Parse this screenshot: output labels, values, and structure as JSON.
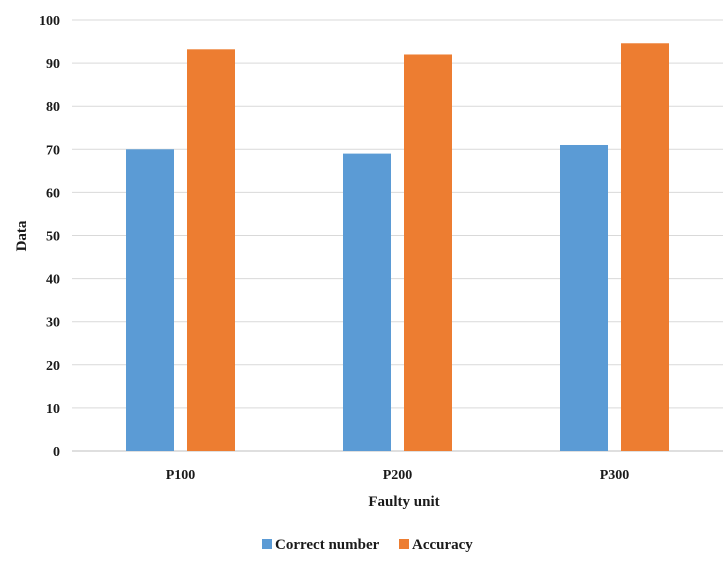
{
  "chart_data": {
    "type": "bar",
    "categories": [
      "P100",
      "P200",
      "P300"
    ],
    "series": [
      {
        "name": "Correct number",
        "values": [
          70,
          69,
          71
        ]
      },
      {
        "name": "Accuracy",
        "values": [
          93.2,
          92,
          94.6
        ]
      }
    ],
    "xlabel": "Faulty unit",
    "ylabel": "Data",
    "ylim": [
      0,
      100
    ],
    "yticks": [
      0,
      10,
      20,
      30,
      40,
      50,
      60,
      70,
      80,
      90,
      100
    ],
    "grid": true,
    "legend_position": "bottom",
    "colors": [
      "#5b9bd5",
      "#ed7d31"
    ]
  }
}
